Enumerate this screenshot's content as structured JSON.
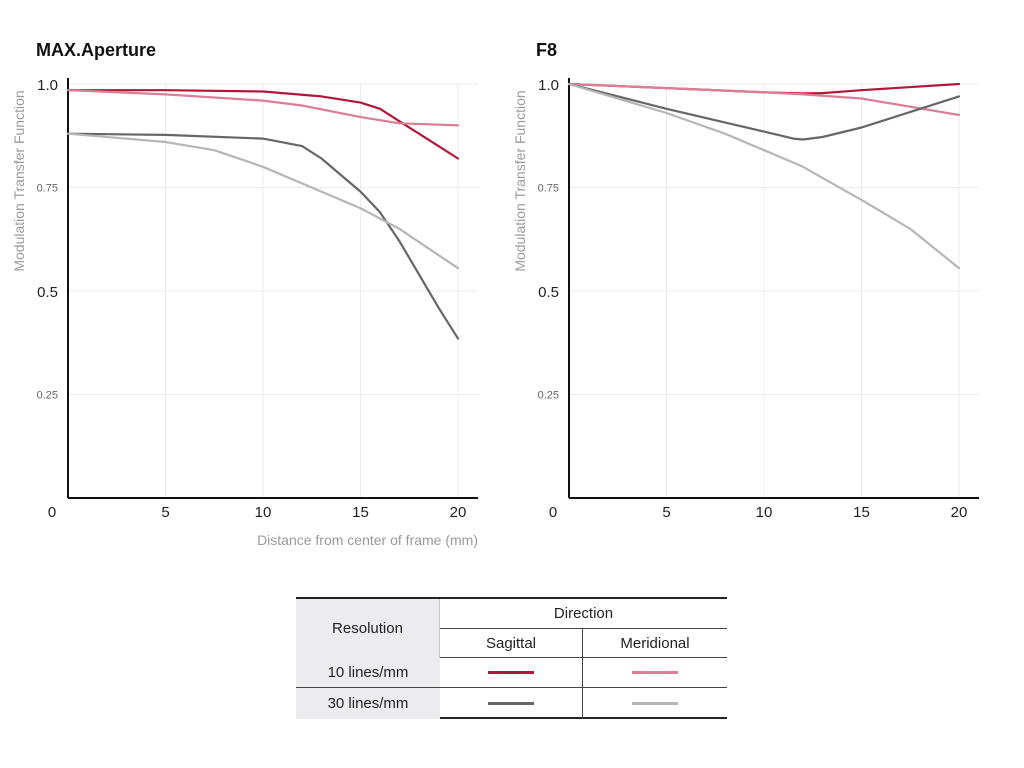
{
  "chart_data": [
    {
      "type": "line",
      "title": "MAX.Aperture",
      "ylabel": "Modulation Transfer Function",
      "xlabel": "Distance from center of frame (mm)",
      "xlim": [
        0,
        20
      ],
      "ylim": [
        0,
        1.0
      ],
      "x_ticks": [
        "0",
        "5",
        "10",
        "15",
        "20"
      ],
      "y_ticks": [
        "1.0",
        "0.75",
        "0.5",
        "0.25"
      ],
      "grid": true,
      "series": [
        {
          "name": "10 lines/mm Sagittal",
          "color": "#b0183a",
          "x": [
            0,
            5,
            10,
            13,
            15,
            16,
            17,
            18,
            19,
            20
          ],
          "y": [
            0.985,
            0.985,
            0.982,
            0.97,
            0.955,
            0.94,
            0.91,
            0.88,
            0.85,
            0.82
          ]
        },
        {
          "name": "10 lines/mm Meridional",
          "color": "#dc7e94",
          "x": [
            0,
            5,
            10,
            12,
            15,
            17,
            20
          ],
          "y": [
            0.985,
            0.975,
            0.96,
            0.948,
            0.92,
            0.905,
            0.9
          ]
        },
        {
          "name": "30 lines/mm Sagittal",
          "color": "#66666a",
          "x": [
            0,
            5,
            10,
            12,
            13,
            14,
            15,
            16,
            17,
            18,
            19,
            20
          ],
          "y": [
            0.88,
            0.877,
            0.868,
            0.85,
            0.82,
            0.78,
            0.74,
            0.69,
            0.62,
            0.54,
            0.46,
            0.385
          ]
        },
        {
          "name": "30 lines/mm Meridional",
          "color": "#b6b6b8",
          "x": [
            0,
            5,
            7.5,
            10,
            15,
            17,
            20
          ],
          "y": [
            0.88,
            0.86,
            0.84,
            0.8,
            0.7,
            0.65,
            0.555
          ]
        }
      ]
    },
    {
      "type": "line",
      "title": "F8",
      "ylabel": "Modulation Transfer Function",
      "xlabel": "",
      "xlim": [
        0,
        20
      ],
      "ylim": [
        0,
        1.0
      ],
      "x_ticks": [
        "0",
        "5",
        "10",
        "15",
        "20"
      ],
      "y_ticks": [
        "1.0",
        "0.75",
        "0.5",
        "0.25"
      ],
      "grid": true,
      "series": [
        {
          "name": "10 lines/mm Sagittal",
          "color": "#b0183a",
          "x": [
            0,
            5,
            10,
            12,
            13,
            15,
            20
          ],
          "y": [
            1.0,
            0.99,
            0.98,
            0.977,
            0.978,
            0.985,
            1.0
          ]
        },
        {
          "name": "10 lines/mm Meridional",
          "color": "#dc7e94",
          "x": [
            0,
            5,
            10,
            12,
            15,
            20
          ],
          "y": [
            1.0,
            0.99,
            0.98,
            0.975,
            0.965,
            0.925
          ]
        },
        {
          "name": "30 lines/mm Sagittal",
          "color": "#66666a",
          "x": [
            0,
            5,
            10,
            11.5,
            12,
            13,
            15,
            20
          ],
          "y": [
            1.0,
            0.94,
            0.885,
            0.868,
            0.866,
            0.872,
            0.895,
            0.97
          ]
        },
        {
          "name": "30 lines/mm Meridional",
          "color": "#b6b6b8",
          "x": [
            0,
            5,
            8,
            10,
            12,
            13.5,
            15,
            17.5,
            20
          ],
          "y": [
            1.0,
            0.93,
            0.88,
            0.84,
            0.8,
            0.76,
            0.72,
            0.65,
            0.555
          ]
        }
      ]
    }
  ],
  "legend": {
    "resolution_header": "Resolution",
    "direction_header": "Direction",
    "sagittal_header": "Sagittal",
    "meridional_header": "Meridional",
    "rows": [
      {
        "label": "10 lines/mm",
        "sagittal_color": "#b0183a",
        "meridional_color": "#dc7e94"
      },
      {
        "label": "30 lines/mm",
        "sagittal_color": "#66666a",
        "meridional_color": "#b6b6b8"
      }
    ]
  }
}
